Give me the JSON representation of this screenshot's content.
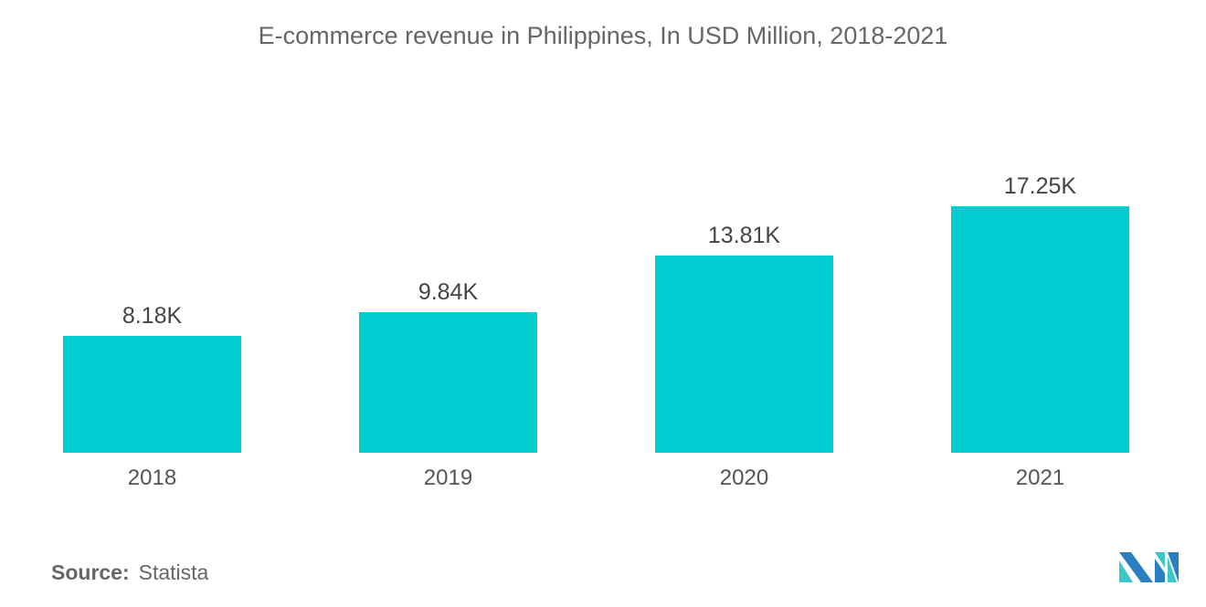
{
  "chart_data": {
    "type": "bar",
    "title": "E-commerce revenue in Philippines, In USD Million,  2018-2021",
    "categories": [
      "2018",
      "2019",
      "2020",
      "2021"
    ],
    "values": [
      8180,
      9840,
      13810,
      17250
    ],
    "data_labels": [
      "8.18K",
      "9.84K",
      "13.81K",
      "17.25K"
    ],
    "xlabel": "",
    "ylabel": "",
    "ylim": [
      0,
      17250
    ],
    "grid": false,
    "bar_color": "#00CED1"
  },
  "source": {
    "label": "Source:",
    "value": "Statista"
  },
  "logo_colors": [
    "#2A7FC1",
    "#3CC8C8"
  ]
}
